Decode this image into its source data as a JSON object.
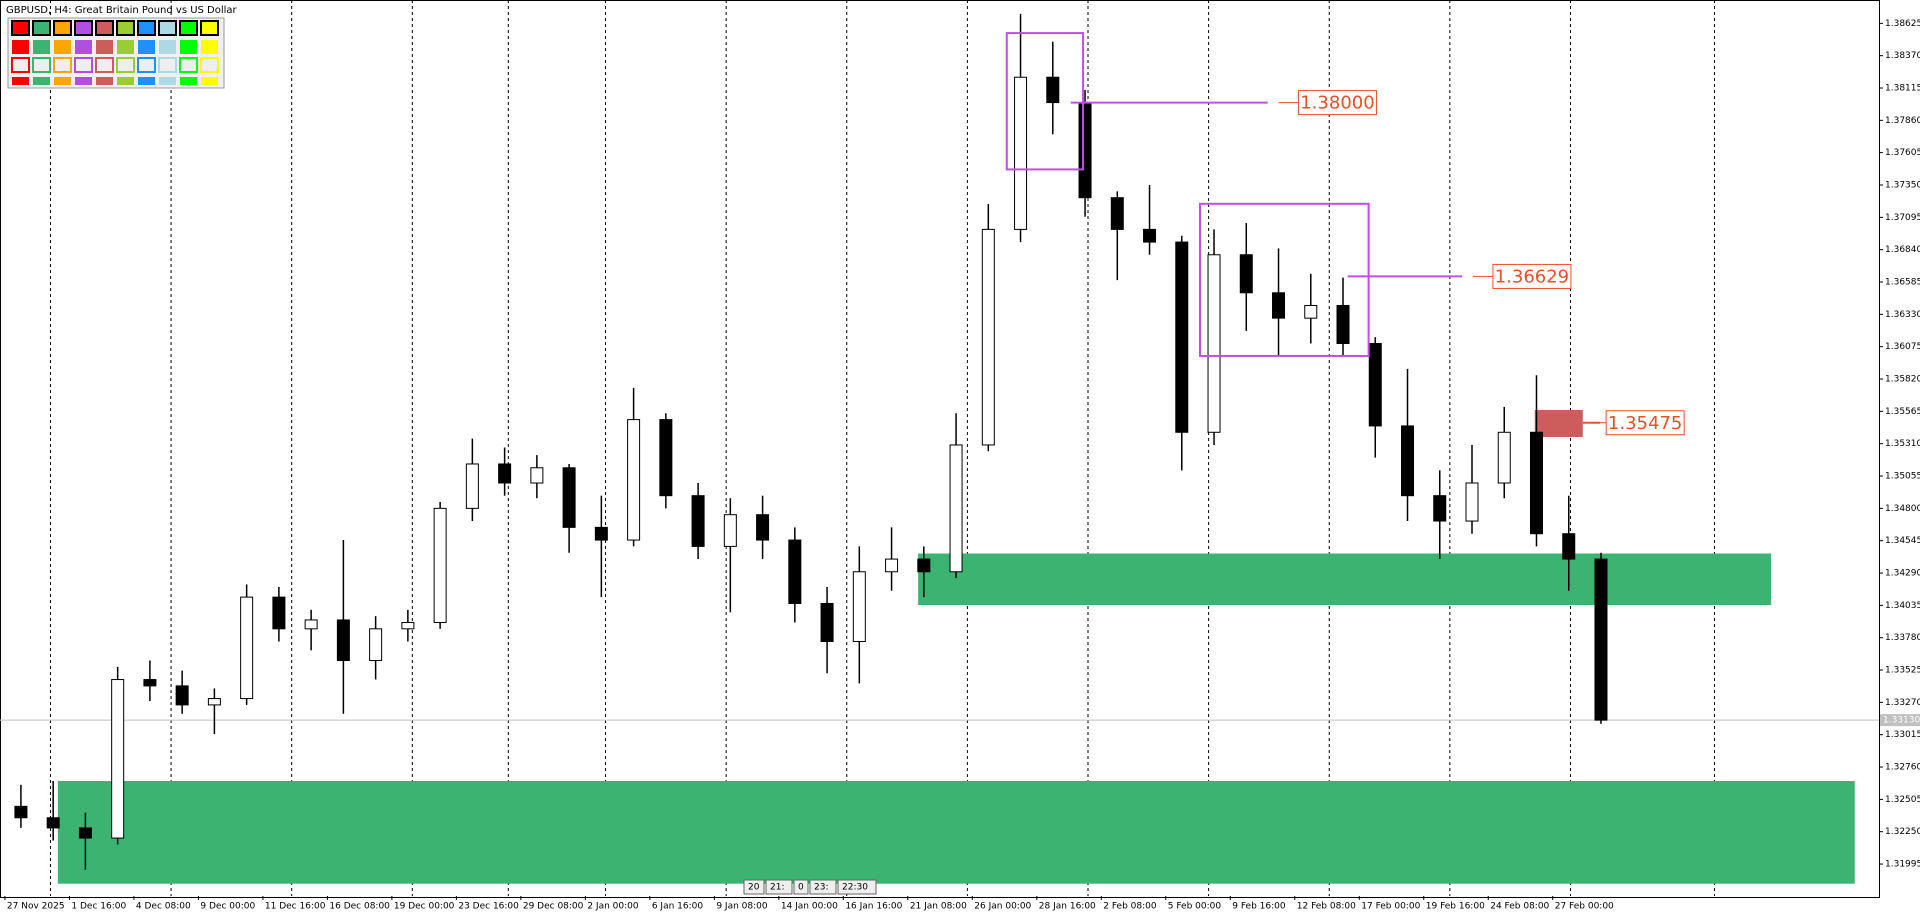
{
  "chart_data": {
    "type": "candlestick",
    "title": "GBPUSD, H4:  Great Britain Pound vs US Dollar",
    "categories": [
      "27 Nov 2025",
      null,
      "1 Dec 16:00",
      null,
      "4 Dec 08:00",
      null,
      "9 Dec 00:00",
      null,
      "11 Dec 16:00",
      null,
      "16 Dec 08:00",
      null,
      "19 Dec 00:00",
      null,
      "23 Dec 16:00",
      null,
      "29 Dec 08:00",
      null,
      "2 Jan 00:00",
      null,
      "6 Jan 16:00",
      null,
      "9 Jan 08:00",
      null,
      "14 Jan 00:00",
      null,
      "16 Jan 16:00",
      null,
      "21 Jan 08:00",
      null,
      "26 Jan 00:00",
      null,
      "28 Jan 16:00",
      null,
      "2 Feb 08:00",
      null,
      "5 Feb 00:00",
      null,
      "9 Feb 16:00",
      null,
      "12 Feb 08:00",
      null,
      "17 Feb 00:00",
      null,
      "19 Feb 16:00",
      null,
      "24 Feb 08:00",
      null,
      "27 Feb 00:00",
      null
    ],
    "open": [
      1.3245,
      1.3236,
      1.3228,
      1.322,
      1.3345,
      1.334,
      1.3325,
      1.333,
      1.341,
      1.3385,
      1.3392,
      1.336,
      1.3385,
      1.339,
      1.348,
      1.3515,
      1.35,
      1.3512,
      1.3465,
      1.3455,
      1.355,
      1.349,
      1.345,
      1.3475,
      1.3455,
      1.3405,
      1.3375,
      1.343,
      1.344,
      1.343,
      1.353,
      1.37,
      1.382,
      1.38,
      1.3725,
      1.37,
      1.369,
      1.354,
      1.368,
      1.365,
      1.363,
      1.364,
      1.361,
      1.3545,
      1.349,
      1.347,
      1.35,
      1.354,
      1.346,
      1.344
    ],
    "high": [
      1.3262,
      1.3265,
      1.324,
      1.3355,
      1.336,
      1.3352,
      1.3338,
      1.342,
      1.3418,
      1.34,
      1.3455,
      1.3395,
      1.34,
      1.3485,
      1.3535,
      1.3528,
      1.3522,
      1.3515,
      1.349,
      1.3575,
      1.3555,
      1.35,
      1.3488,
      1.349,
      1.3465,
      1.3418,
      1.345,
      1.3465,
      1.345,
      1.3555,
      1.372,
      1.387,
      1.3848,
      1.381,
      1.373,
      1.3735,
      1.3695,
      1.37,
      1.3705,
      1.3685,
      1.3665,
      1.3662,
      1.3615,
      1.359,
      1.351,
      1.353,
      1.356,
      1.3585,
      1.349,
      1.3445
    ],
    "low": [
      1.3228,
      1.3218,
      1.3195,
      1.3215,
      1.3328,
      1.3318,
      1.3302,
      1.3325,
      1.3375,
      1.3368,
      1.3318,
      1.3345,
      1.3375,
      1.3385,
      1.347,
      1.349,
      1.3488,
      1.3445,
      1.341,
      1.345,
      1.348,
      1.344,
      1.3398,
      1.344,
      1.339,
      1.335,
      1.3342,
      1.3415,
      1.341,
      1.3425,
      1.3525,
      1.369,
      1.3775,
      1.371,
      1.366,
      1.368,
      1.351,
      1.353,
      1.362,
      1.36,
      1.361,
      1.36,
      1.352,
      1.347,
      1.344,
      1.346,
      1.3488,
      1.345,
      1.3415,
      1.331
    ],
    "close": [
      1.3236,
      1.3228,
      1.322,
      1.3345,
      1.334,
      1.3325,
      1.333,
      1.341,
      1.3385,
      1.3392,
      1.336,
      1.3385,
      1.339,
      1.348,
      1.3515,
      1.35,
      1.3512,
      1.3465,
      1.3455,
      1.355,
      1.349,
      1.345,
      1.3475,
      1.3455,
      1.3405,
      1.3375,
      1.343,
      1.344,
      1.343,
      1.353,
      1.37,
      1.382,
      1.38,
      1.3725,
      1.37,
      1.369,
      1.354,
      1.368,
      1.365,
      1.363,
      1.364,
      1.361,
      1.3545,
      1.349,
      1.347,
      1.35,
      1.354,
      1.346,
      1.344,
      1.3313
    ],
    "ylim": [
      1.31743,
      1.38809
    ],
    "yticks": [
      1.38625,
      {
        "value": 1.3837,
        "label": "1.38370"
      },
      1.38115,
      {
        "value": 1.3786,
        "label": "1.37860"
      },
      1.37605,
      {
        "value": 1.3735,
        "label": "1.37350"
      },
      1.37095,
      {
        "value": 1.3684,
        "label": "1.36840"
      },
      1.36585,
      {
        "value": 1.3633,
        "label": "1.36330"
      },
      1.36075,
      {
        "value": 1.3582,
        "label": "1.35820"
      },
      1.35565,
      {
        "value": 1.3531,
        "label": "1.35310"
      },
      1.35055,
      {
        "value": 1.348,
        "label": "1.34800"
      },
      1.34545,
      {
        "value": 1.3429,
        "label": "1.34290"
      },
      1.34035,
      {
        "value": 1.3378,
        "label": "1.33780"
      },
      1.33525,
      {
        "value": 1.3327,
        "label": "1.33270"
      },
      1.33015,
      {
        "value": 1.3276,
        "label": "1.32760"
      },
      1.32505,
      {
        "value": 1.3225,
        "label": "1.32250"
      },
      1.31995
    ],
    "last_price": {
      "value": 1.3313,
      "label": "1.33130"
    },
    "zones": [
      {
        "low": 1.3184,
        "high": 1.3265,
        "color": "#3cb371"
      },
      {
        "low": 1.34038,
        "high": 1.34444,
        "color": "#3cb371"
      },
      {
        "low": 1.35363,
        "high": 1.35576,
        "color": "#cd5c5c"
      }
    ],
    "boxes": [
      {
        "low": 1.37473,
        "high": 1.38548,
        "color": "#c050e0"
      },
      {
        "low": 1.36002,
        "high": 1.37202,
        "color": "#c050e0"
      }
    ],
    "levels": [
      {
        "value": 1.38,
        "label": "1.38000",
        "color": "#c050e0"
      },
      {
        "value": 1.36629,
        "label": "1.36629",
        "color": "#c050e0"
      },
      {
        "value": 1.35475,
        "label": "1.35475",
        "color": "#cd5c5c"
      }
    ],
    "scroll_labels": [
      "20",
      "21:",
      "0",
      "23:",
      "22:30"
    ]
  }
}
